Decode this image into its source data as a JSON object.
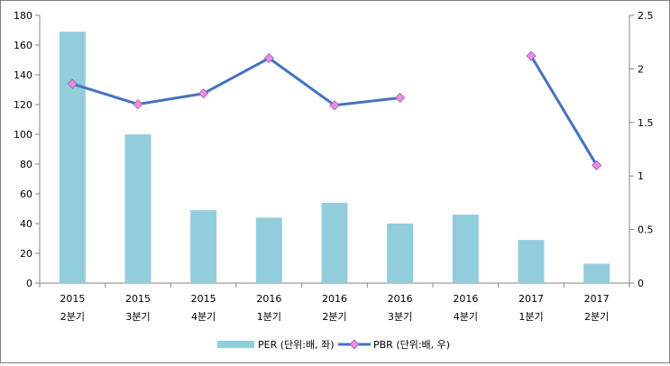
{
  "chart_data": {
    "type": "bar",
    "categories": [
      [
        "2015",
        "2분기"
      ],
      [
        "2015",
        "3분기"
      ],
      [
        "2015",
        "4분기"
      ],
      [
        "2016",
        "1분기"
      ],
      [
        "2016",
        "2분기"
      ],
      [
        "2016",
        "3분기"
      ],
      [
        "2016",
        "4분기"
      ],
      [
        "2017",
        "1분기"
      ],
      [
        "2017",
        "2분기"
      ]
    ],
    "series": [
      {
        "name": "PER (단위:배, 좌)",
        "type": "bar",
        "axis": "left",
        "color": "#92CDDC",
        "values": [
          169,
          100,
          49,
          44,
          54,
          40,
          46,
          29,
          13
        ]
      },
      {
        "name": "PBR (단위:배, 우)",
        "type": "line",
        "axis": "right",
        "color": "#4472C4",
        "marker_color": "#E98FE3",
        "values": [
          1.86,
          1.67,
          1.77,
          2.1,
          1.66,
          1.73,
          null,
          2.12,
          1.1
        ]
      }
    ],
    "y_left": {
      "min": 0,
      "max": 180,
      "ticks": [
        0,
        20,
        40,
        60,
        80,
        100,
        120,
        140,
        160,
        180
      ]
    },
    "y_right": {
      "min": 0,
      "max": 2.5,
      "ticks": [
        "0",
        "0.5",
        "1",
        "1.5",
        "2",
        "2.5"
      ]
    },
    "legend_position": "bottom",
    "grid": false
  }
}
